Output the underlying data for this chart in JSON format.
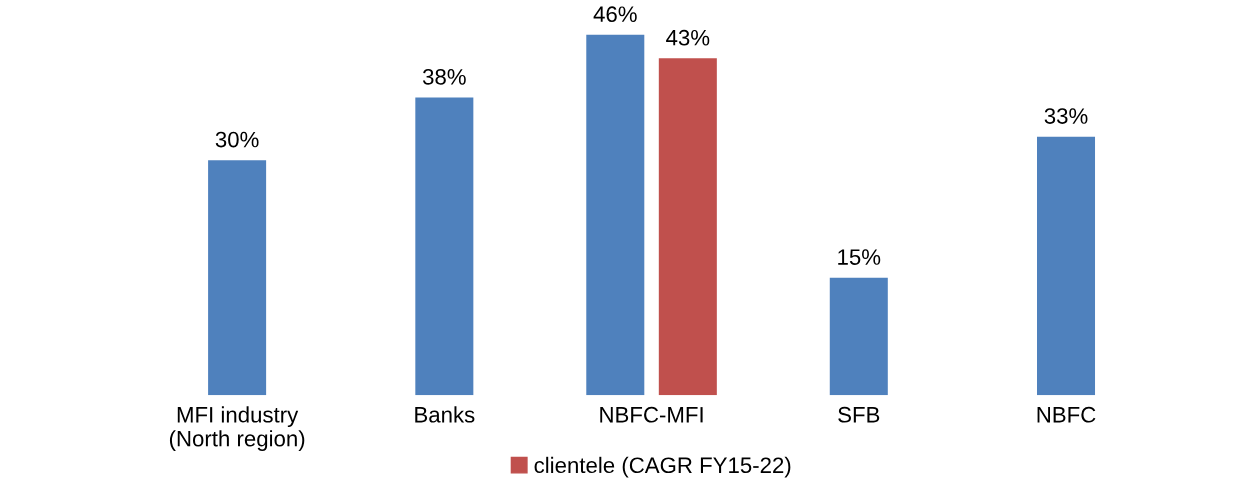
{
  "chart_data": {
    "type": "bar",
    "categories": [
      "MFI industry\n(North region)",
      "Banks",
      "NBFC-MFI",
      "SFB",
      "NBFC"
    ],
    "series": [
      {
        "color": "#4f81bd",
        "values": [
          30,
          38,
          46,
          15,
          33
        ],
        "value_labels": [
          "30%",
          "38%",
          "46%",
          "15%",
          "33%"
        ]
      },
      {
        "name": "clientele (CAGR FY15-22)",
        "color": "#c0504d",
        "values": [
          null,
          null,
          43,
          null,
          null
        ],
        "value_labels": [
          null,
          null,
          "43%",
          null,
          null
        ]
      }
    ],
    "legend": "bottom",
    "grid": false
  }
}
